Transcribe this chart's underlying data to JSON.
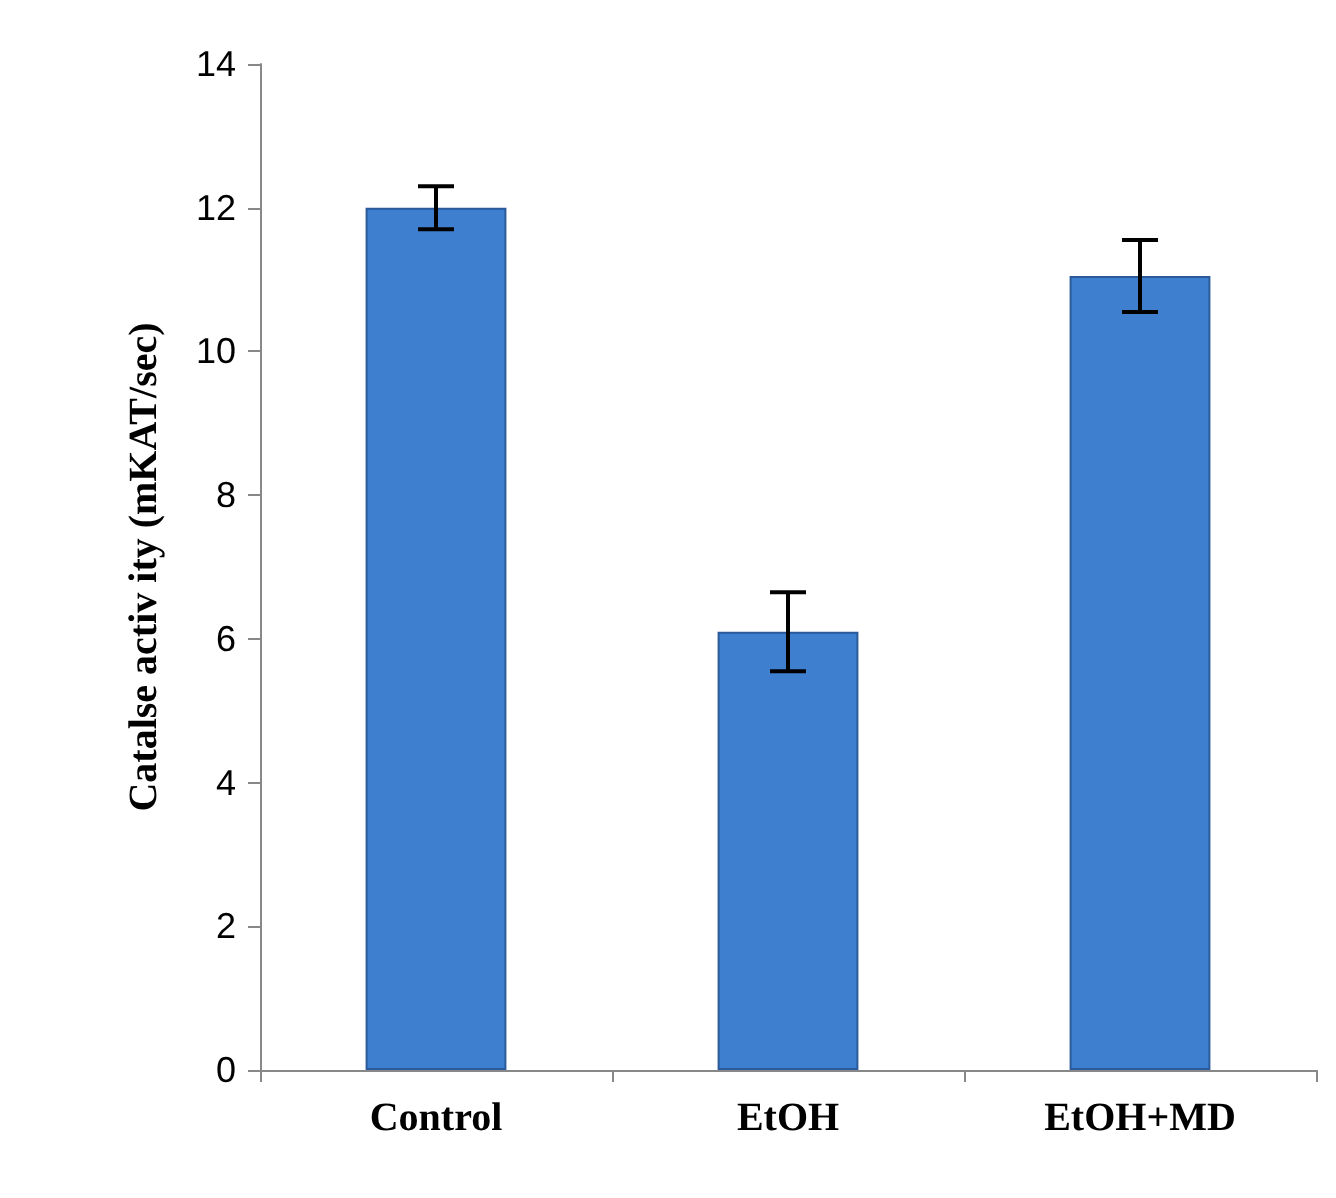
{
  "chart_data": {
    "type": "bar",
    "ylabel": "Catalse activ ity (mKAT/sec)",
    "categories": [
      "Control",
      "EtOH",
      "EtOH+MD"
    ],
    "values": [
      12.0,
      6.1,
      11.05
    ],
    "errors": [
      0.3,
      0.55,
      0.5
    ],
    "color": "#3f7fd0",
    "ylim": [
      0,
      14
    ],
    "yticks": [
      0,
      2,
      4,
      6,
      8,
      10,
      12,
      14
    ]
  }
}
